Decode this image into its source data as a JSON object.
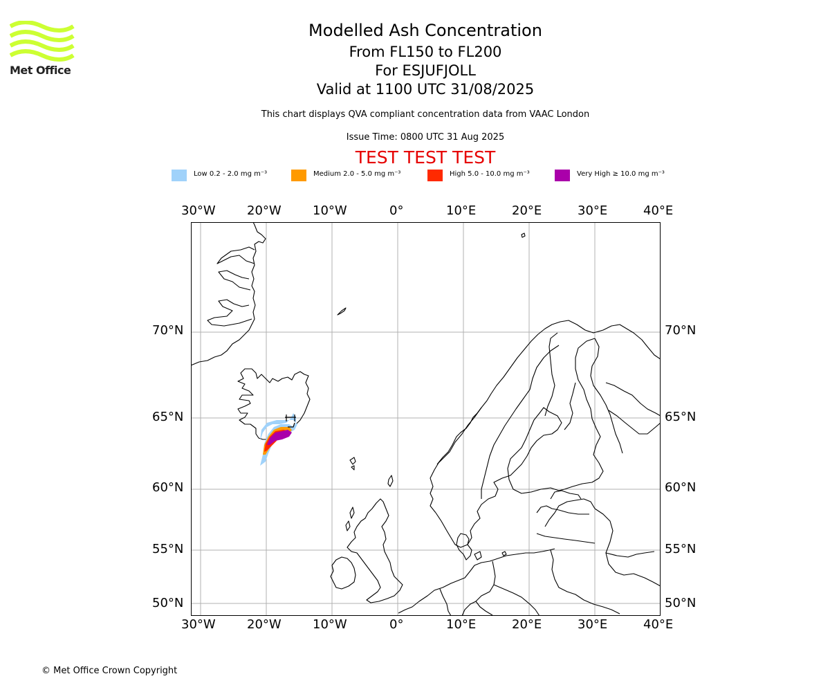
{
  "header": {
    "title": "Modelled Ash Concentration",
    "level_range": "From FL150 to FL200",
    "volcano": "For ESJUFJOLL",
    "valid_time": "Valid at 1100 UTC 31/08/2025",
    "subtitle": "This chart displays QVA compliant concentration data from VAAC London",
    "issue_time": "Issue Time: 0800 UTC 31 Aug 2025",
    "test_banner": "TEST TEST TEST"
  },
  "logo": {
    "text": "Met Office",
    "color": "#ccff33"
  },
  "legend": [
    {
      "label": "Low 0.2 - 2.0 mg m⁻³",
      "color": "#a0d2fa"
    },
    {
      "label": "Medium 2.0 - 5.0 mg m⁻³",
      "color": "#ff9a00"
    },
    {
      "label": "High 5.0 - 10.0 mg m⁻³",
      "color": "#ff2a00"
    },
    {
      "label": "Very High ≥ 10.0 mg m⁻³",
      "color": "#aa00aa"
    }
  ],
  "axes": {
    "lon_ticks": [
      "30°W",
      "20°W",
      "10°W",
      "0°",
      "10°E",
      "20°E",
      "30°E",
      "40°E"
    ],
    "lat_ticks": [
      "70°N",
      "65°N",
      "60°N",
      "55°N",
      "50°N"
    ]
  },
  "footer": {
    "copyright": "© Met Office Crown Copyright"
  }
}
